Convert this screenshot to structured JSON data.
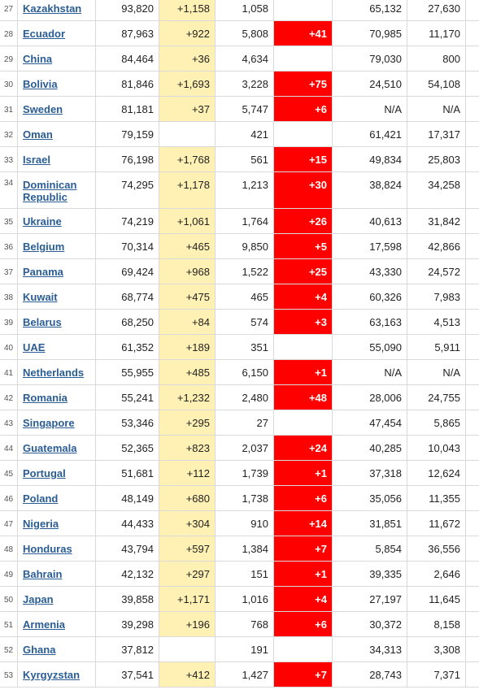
{
  "rows": [
    {
      "n": "27",
      "country": "Kazakhstan",
      "total": "93,820",
      "new": "+1,158",
      "deaths": "1,058",
      "new_deaths": "",
      "recovered": "65,132",
      "active": "27,630"
    },
    {
      "n": "28",
      "country": "Ecuador",
      "total": "87,963",
      "new": "+922",
      "deaths": "5,808",
      "new_deaths": "+41",
      "recovered": "70,985",
      "active": "11,170"
    },
    {
      "n": "29",
      "country": "China",
      "total": "84,464",
      "new": "+36",
      "deaths": "4,634",
      "new_deaths": "",
      "recovered": "79,030",
      "active": "800"
    },
    {
      "n": "30",
      "country": "Bolivia",
      "total": "81,846",
      "new": "+1,693",
      "deaths": "3,228",
      "new_deaths": "+75",
      "recovered": "24,510",
      "active": "54,108"
    },
    {
      "n": "31",
      "country": "Sweden",
      "total": "81,181",
      "new": "+37",
      "deaths": "5,747",
      "new_deaths": "+6",
      "recovered": "N/A",
      "active": "N/A"
    },
    {
      "n": "32",
      "country": "Oman",
      "total": "79,159",
      "new": "",
      "deaths": "421",
      "new_deaths": "",
      "recovered": "61,421",
      "active": "17,317"
    },
    {
      "n": "33",
      "country": "Israel",
      "total": "76,198",
      "new": "+1,768",
      "deaths": "561",
      "new_deaths": "+15",
      "recovered": "49,834",
      "active": "25,803"
    },
    {
      "n": "34",
      "country": "Dominican Republic",
      "total": "74,295",
      "new": "+1,178",
      "deaths": "1,213",
      "new_deaths": "+30",
      "recovered": "38,824",
      "active": "34,258"
    },
    {
      "n": "35",
      "country": "Ukraine",
      "total": "74,219",
      "new": "+1,061",
      "deaths": "1,764",
      "new_deaths": "+26",
      "recovered": "40,613",
      "active": "31,842"
    },
    {
      "n": "36",
      "country": "Belgium",
      "total": "70,314",
      "new": "+465",
      "deaths": "9,850",
      "new_deaths": "+5",
      "recovered": "17,598",
      "active": "42,866"
    },
    {
      "n": "37",
      "country": "Panama",
      "total": "69,424",
      "new": "+968",
      "deaths": "1,522",
      "new_deaths": "+25",
      "recovered": "43,330",
      "active": "24,572"
    },
    {
      "n": "38",
      "country": "Kuwait",
      "total": "68,774",
      "new": "+475",
      "deaths": "465",
      "new_deaths": "+4",
      "recovered": "60,326",
      "active": "7,983"
    },
    {
      "n": "39",
      "country": "Belarus",
      "total": "68,250",
      "new": "+84",
      "deaths": "574",
      "new_deaths": "+3",
      "recovered": "63,163",
      "active": "4,513"
    },
    {
      "n": "40",
      "country": "UAE",
      "total": "61,352",
      "new": "+189",
      "deaths": "351",
      "new_deaths": "",
      "recovered": "55,090",
      "active": "5,911"
    },
    {
      "n": "41",
      "country": "Netherlands",
      "total": "55,955",
      "new": "+485",
      "deaths": "6,150",
      "new_deaths": "+1",
      "recovered": "N/A",
      "active": "N/A"
    },
    {
      "n": "42",
      "country": "Romania",
      "total": "55,241",
      "new": "+1,232",
      "deaths": "2,480",
      "new_deaths": "+48",
      "recovered": "28,006",
      "active": "24,755"
    },
    {
      "n": "43",
      "country": "Singapore",
      "total": "53,346",
      "new": "+295",
      "deaths": "27",
      "new_deaths": "",
      "recovered": "47,454",
      "active": "5,865"
    },
    {
      "n": "44",
      "country": "Guatemala",
      "total": "52,365",
      "new": "+823",
      "deaths": "2,037",
      "new_deaths": "+24",
      "recovered": "40,285",
      "active": "10,043"
    },
    {
      "n": "45",
      "country": "Portugal",
      "total": "51,681",
      "new": "+112",
      "deaths": "1,739",
      "new_deaths": "+1",
      "recovered": "37,318",
      "active": "12,624"
    },
    {
      "n": "46",
      "country": "Poland",
      "total": "48,149",
      "new": "+680",
      "deaths": "1,738",
      "new_deaths": "+6",
      "recovered": "35,056",
      "active": "11,355"
    },
    {
      "n": "47",
      "country": "Nigeria",
      "total": "44,433",
      "new": "+304",
      "deaths": "910",
      "new_deaths": "+14",
      "recovered": "31,851",
      "active": "11,672"
    },
    {
      "n": "48",
      "country": "Honduras",
      "total": "43,794",
      "new": "+597",
      "deaths": "1,384",
      "new_deaths": "+7",
      "recovered": "5,854",
      "active": "36,556"
    },
    {
      "n": "49",
      "country": "Bahrain",
      "total": "42,132",
      "new": "+297",
      "deaths": "151",
      "new_deaths": "+1",
      "recovered": "39,335",
      "active": "2,646"
    },
    {
      "n": "50",
      "country": "Japan",
      "total": "39,858",
      "new": "+1,171",
      "deaths": "1,016",
      "new_deaths": "+4",
      "recovered": "27,197",
      "active": "11,645"
    },
    {
      "n": "51",
      "country": "Armenia",
      "total": "39,298",
      "new": "+196",
      "deaths": "768",
      "new_deaths": "+6",
      "recovered": "30,372",
      "active": "8,158"
    },
    {
      "n": "52",
      "country": "Ghana",
      "total": "37,812",
      "new": "",
      "deaths": "191",
      "new_deaths": "",
      "recovered": "34,313",
      "active": "3,308"
    },
    {
      "n": "53",
      "country": "Kyrgyzstan",
      "total": "37,541",
      "new": "+412",
      "deaths": "1,427",
      "new_deaths": "+7",
      "recovered": "28,743",
      "active": "7,371"
    }
  ],
  "colors": {
    "new_cases_highlight": "#fff0b3",
    "new_deaths_highlight": "#ff0000",
    "link": "#2a5d93"
  }
}
